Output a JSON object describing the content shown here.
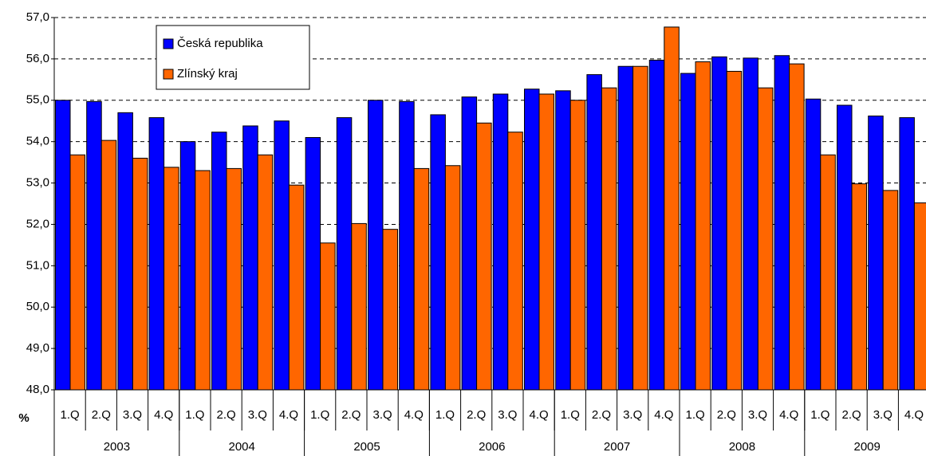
{
  "chart_data": {
    "type": "bar",
    "categories": [
      "1.Q",
      "2.Q",
      "3.Q",
      "4.Q",
      "1.Q",
      "2.Q",
      "3.Q",
      "4.Q",
      "1.Q",
      "2.Q",
      "3.Q",
      "4.Q",
      "1.Q",
      "2.Q",
      "3.Q",
      "4.Q",
      "1.Q",
      "2.Q",
      "3.Q",
      "4.Q",
      "1.Q",
      "2.Q",
      "3.Q",
      "4.Q",
      "1.Q",
      "2.Q",
      "3.Q",
      "4.Q"
    ],
    "years": [
      "2003",
      "2004",
      "2005",
      "2006",
      "2007",
      "2008",
      "2009"
    ],
    "y_label": "%",
    "series": [
      {
        "name": "Česká republika",
        "color": "#0000ff",
        "values": [
          55.0,
          54.97,
          54.7,
          54.58,
          54.0,
          54.23,
          54.38,
          54.5,
          54.1,
          54.58,
          55.0,
          54.97,
          54.65,
          55.08,
          55.15,
          55.27,
          55.23,
          55.62,
          55.82,
          55.97,
          55.65,
          56.05,
          56.02,
          56.08,
          55.03,
          54.88,
          54.62,
          54.58
        ]
      },
      {
        "name": "Zlínský kraj",
        "color": "#ff6600",
        "values": [
          53.68,
          54.03,
          53.6,
          53.38,
          53.3,
          53.35,
          53.68,
          52.95,
          51.55,
          52.02,
          51.88,
          53.35,
          53.42,
          54.45,
          54.23,
          55.15,
          55.0,
          55.3,
          55.82,
          56.77,
          55.93,
          55.7,
          55.3,
          55.88,
          53.68,
          52.98,
          52.82,
          52.52
        ]
      }
    ],
    "ylim": [
      48,
      57
    ],
    "yticks": [
      {
        "value": 48,
        "label": "48,0"
      },
      {
        "value": 49,
        "label": "49,0"
      },
      {
        "value": 50,
        "label": "50,0"
      },
      {
        "value": 51,
        "label": "51,0"
      },
      {
        "value": 52,
        "label": "52,0"
      },
      {
        "value": 53,
        "label": "53,0"
      },
      {
        "value": 54,
        "label": "54,0"
      },
      {
        "value": 55,
        "label": "55,0"
      },
      {
        "value": 56,
        "label": "56,0"
      },
      {
        "value": 57,
        "label": "57,0"
      }
    ],
    "grid": true
  }
}
